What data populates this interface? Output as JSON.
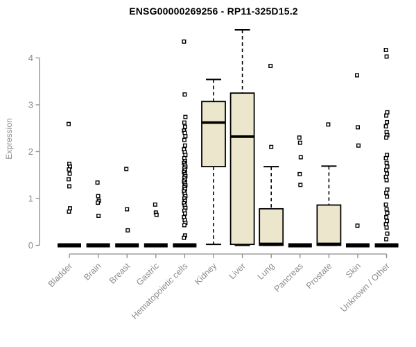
{
  "chart_data": {
    "type": "boxplot",
    "title": "ENSG00000269256 - RP11-325D15.2",
    "xlabel": "",
    "ylabel": "Expression",
    "ylim": [
      0,
      4.75
    ],
    "yticks": [
      0,
      1,
      2,
      3,
      4
    ],
    "grid": false,
    "legend": "none",
    "categories": [
      "Bladder",
      "Brain",
      "Breast",
      "Gastric",
      "Hematopoietic cells",
      "Kidney",
      "Liver",
      "Lung",
      "Pancreas",
      "Prostate",
      "Skin",
      "Unknown / Other"
    ],
    "series": [
      {
        "name": "Bladder",
        "q1": 0,
        "median": 0,
        "q3": 0,
        "whisker_low": 0,
        "whisker_high": 0,
        "outliers": [
          2.59,
          1.74,
          1.68,
          1.62,
          1.53,
          1.41,
          1.26,
          0.79,
          0.72
        ]
      },
      {
        "name": "Brain",
        "q1": 0,
        "median": 0,
        "q3": 0,
        "whisker_low": 0,
        "whisker_high": 0,
        "outliers": [
          1.34,
          1.05,
          0.95,
          0.91,
          0.63
        ]
      },
      {
        "name": "Breast",
        "q1": 0,
        "median": 0,
        "q3": 0,
        "whisker_low": 0,
        "whisker_high": 0,
        "outliers": [
          1.63,
          0.77,
          0.32
        ]
      },
      {
        "name": "Gastric",
        "q1": 0,
        "median": 0,
        "q3": 0,
        "whisker_low": 0,
        "whisker_high": 0,
        "outliers": [
          0.87,
          0.7,
          0.65
        ]
      },
      {
        "name": "Hematopoietic cells",
        "q1": 0,
        "median": 0,
        "q3": 0,
        "whisker_low": 0,
        "whisker_high": 0,
        "outliers": [
          4.35,
          3.22,
          2.74,
          2.62,
          2.53,
          2.45,
          2.4,
          2.33,
          2.25,
          2.13,
          2.05,
          1.99,
          1.93,
          1.86,
          1.8,
          1.76,
          1.72,
          1.68,
          1.64,
          1.6,
          1.56,
          1.52,
          1.48,
          1.44,
          1.4,
          1.36,
          1.32,
          1.28,
          1.24,
          1.2,
          1.15,
          1.1,
          1.05,
          1.0,
          0.95,
          0.9,
          0.85,
          0.8,
          0.74,
          0.68,
          0.6,
          0.54,
          0.48,
          0.43,
          0.21,
          0.16
        ]
      },
      {
        "name": "Kidney",
        "q1": 1.68,
        "median": 2.62,
        "q3": 3.07,
        "whisker_low": 0.02,
        "whisker_high": 3.54,
        "outliers": []
      },
      {
        "name": "Liver",
        "q1": 0.02,
        "median": 2.32,
        "q3": 3.25,
        "whisker_low": 0,
        "whisker_high": 4.6,
        "outliers": []
      },
      {
        "name": "Lung",
        "q1": 0,
        "median": 0.03,
        "q3": 0.78,
        "whisker_low": 0,
        "whisker_high": 1.68,
        "outliers": [
          3.83,
          2.1
        ]
      },
      {
        "name": "Pancreas",
        "q1": 0,
        "median": 0,
        "q3": 0,
        "whisker_low": 0,
        "whisker_high": 0,
        "outliers": [
          2.3,
          2.19,
          1.88,
          1.52,
          1.29
        ]
      },
      {
        "name": "Prostate",
        "q1": 0,
        "median": 0.03,
        "q3": 0.86,
        "whisker_low": 0,
        "whisker_high": 1.69,
        "outliers": [
          2.58
        ]
      },
      {
        "name": "Skin",
        "q1": 0,
        "median": 0,
        "q3": 0,
        "whisker_low": 0,
        "whisker_high": 0,
        "outliers": [
          3.63,
          2.52,
          2.13,
          0.42
        ]
      },
      {
        "name": "Unknown / Other",
        "q1": 0,
        "median": 0,
        "q3": 0,
        "whisker_low": 0,
        "whisker_high": 0,
        "outliers": [
          4.17,
          4.03,
          2.84,
          2.77,
          2.63,
          2.54,
          2.42,
          2.35,
          2.3,
          1.93,
          1.86,
          1.76,
          1.68,
          1.61,
          1.53,
          1.46,
          1.39,
          1.19,
          1.12,
          1.04,
          0.87,
          0.77,
          0.69,
          0.6,
          0.52,
          0.45,
          0.38,
          0.25,
          0.13
        ]
      }
    ],
    "colors": {
      "box_fill": "#ece7cc",
      "box_stroke": "#000000",
      "median": "#000000",
      "whisker": "#000000",
      "outlier_stroke": "#000000",
      "outlier_fill": "#ffffff",
      "axis": "#8c8c8c",
      "tick_label": "#8c8c8c",
      "title": "#000000"
    }
  }
}
